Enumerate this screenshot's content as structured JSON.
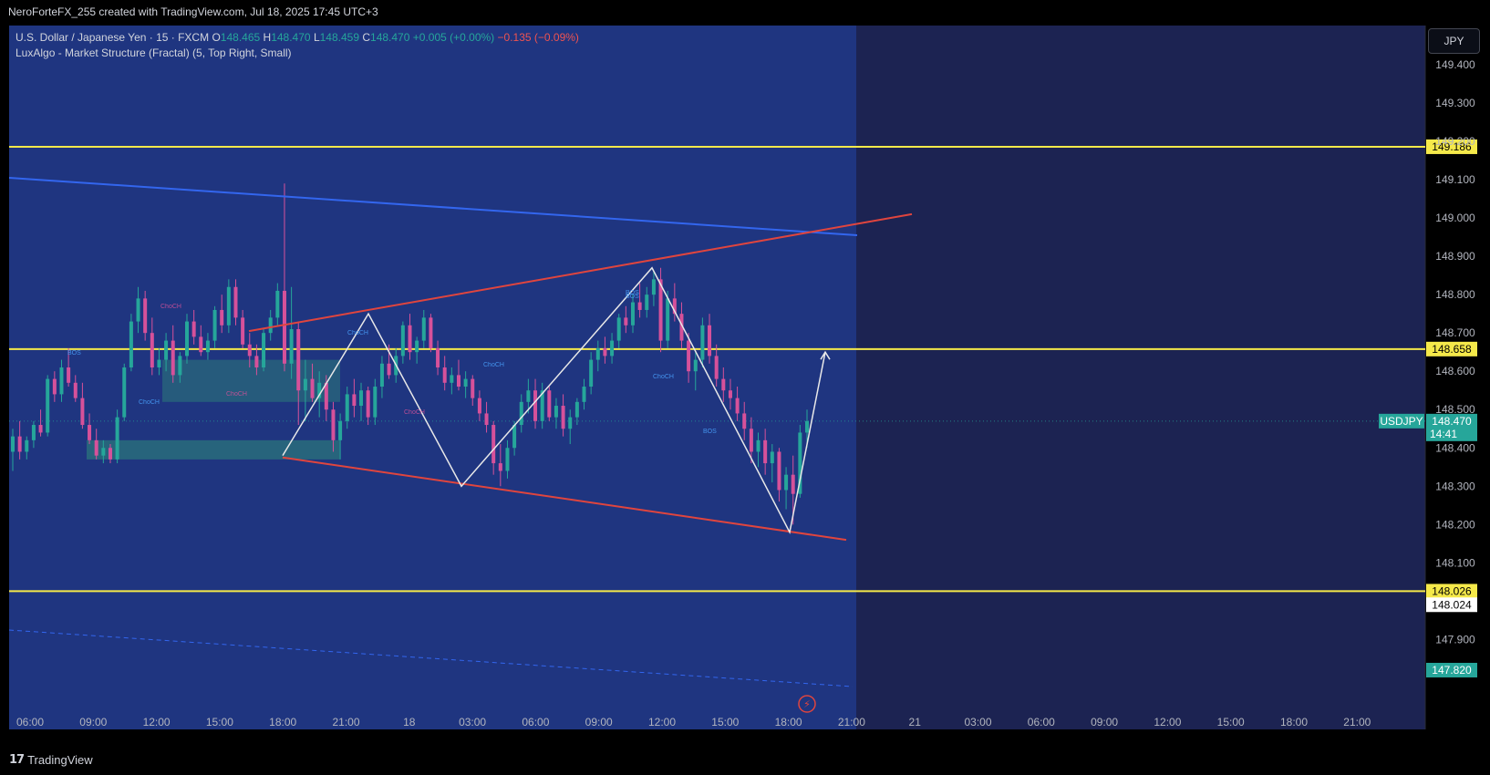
{
  "header": {
    "attribution": "NeroForteFX_255 created with TradingView.com, Jul 18, 2025 17:45 UTC+3"
  },
  "legend": {
    "symbol": "U.S. Dollar / Japanese Yen · 15 · FXCM",
    "open_label": "O",
    "open": "148.465",
    "high_label": "H",
    "high": "148.470",
    "low_label": "L",
    "low": "148.459",
    "close_label": "C",
    "close": "148.470",
    "change": "+0.005 (+0.00%)",
    "day_change": "−0.135 (−0.09%)",
    "indicator": "LuxAlgo - Market Structure (Fractal) (5, Top Right, Small)"
  },
  "currency_button": "JPY",
  "footer": {
    "brand": "TradingView"
  },
  "colors": {
    "background": "#1c2352",
    "shaded_zone": "#1f3580",
    "bull": "#26a69a",
    "bear": "#d6519a",
    "yellow_level": "#f5e94a",
    "blue_line": "#3366ee",
    "red_line": "#e0453e",
    "pattern": "#e8e8e8"
  },
  "chart_data": {
    "type": "candlestick",
    "symbol": "USDJPY",
    "timeframe": "15",
    "ylim": [
      147.77,
      149.5
    ],
    "y_ticks": [
      "149.400",
      "149.300",
      "149.200",
      "149.100",
      "149.000",
      "148.900",
      "148.800",
      "148.700",
      "148.600",
      "148.500",
      "148.400",
      "148.300",
      "148.200",
      "148.100",
      "147.900"
    ],
    "x_ticks": [
      "06:00",
      "09:00",
      "12:00",
      "15:00",
      "18:00",
      "21:00",
      "18",
      "03:00",
      "06:00",
      "09:00",
      "12:00",
      "15:00",
      "18:00",
      "21:00",
      "21",
      "03:00",
      "06:00",
      "09:00",
      "12:00",
      "15:00",
      "18:00",
      "21:00"
    ],
    "price_levels": [
      {
        "value": 149.186,
        "label": "149.186",
        "color": "yellow"
      },
      {
        "value": 148.658,
        "label": "148.658",
        "color": "yellow"
      },
      {
        "value": 148.026,
        "label": "148.026",
        "color": "yellow"
      },
      {
        "value": 148.024,
        "label": "148.024",
        "color": "white"
      }
    ],
    "current_price": {
      "symbol": "USDJPY",
      "value": "148.470",
      "countdown": "14:41"
    },
    "lowest_marker": {
      "value": 147.82,
      "label": "147.820"
    },
    "trendlines": [
      {
        "name": "descending-blue",
        "from": [
          "06:00",
          149.105
        ],
        "to": [
          "20:30",
          148.955
        ]
      },
      {
        "name": "upper-red",
        "from": [
          "18:00",
          148.705
        ],
        "to": [
          "21:30",
          149.01
        ]
      },
      {
        "name": "lower-red",
        "from": [
          "18:00",
          148.375
        ],
        "to": [
          "20:30",
          148.16
        ]
      }
    ],
    "zigzag": [
      [
        "18:00",
        148.38
      ],
      [
        "22:00",
        148.75
      ],
      [
        "02:00",
        148.3
      ],
      [
        "09:30",
        148.87
      ],
      [
        "16:30",
        148.18
      ],
      [
        "17:30",
        148.65
      ]
    ],
    "structure_labels": [
      "BOS",
      "ChoCH",
      "ChoCH",
      "ChoCH",
      "ChoCH",
      "ChoCH",
      "ChoCH",
      "BOS",
      "ChoCH",
      "BOS",
      "BOS"
    ],
    "candles": [
      [
        148.39,
        148.45,
        148.34,
        148.43
      ],
      [
        148.43,
        148.47,
        148.37,
        148.39
      ],
      [
        148.39,
        148.43,
        148.37,
        148.42
      ],
      [
        148.42,
        148.47,
        148.4,
        148.46
      ],
      [
        148.46,
        148.5,
        148.43,
        148.44
      ],
      [
        148.44,
        148.59,
        148.43,
        148.58
      ],
      [
        148.58,
        148.6,
        148.52,
        148.54
      ],
      [
        148.54,
        148.63,
        148.52,
        148.61
      ],
      [
        148.61,
        148.66,
        148.56,
        148.57
      ],
      [
        148.57,
        148.59,
        148.52,
        148.53
      ],
      [
        148.53,
        148.57,
        148.45,
        148.46
      ],
      [
        148.46,
        148.49,
        148.41,
        148.42
      ],
      [
        148.42,
        148.45,
        148.37,
        148.38
      ],
      [
        148.38,
        148.42,
        148.36,
        148.4
      ],
      [
        148.4,
        148.41,
        148.36,
        148.37
      ],
      [
        148.37,
        148.5,
        148.36,
        148.48
      ],
      [
        148.48,
        148.62,
        148.47,
        148.61
      ],
      [
        148.61,
        148.75,
        148.6,
        148.73
      ],
      [
        148.73,
        148.82,
        148.7,
        148.79
      ],
      [
        148.79,
        148.81,
        148.68,
        148.7
      ],
      [
        148.7,
        148.74,
        148.59,
        148.61
      ],
      [
        148.61,
        148.66,
        148.59,
        148.63
      ],
      [
        148.63,
        148.7,
        148.6,
        148.68
      ],
      [
        148.68,
        148.72,
        148.57,
        148.59
      ],
      [
        148.59,
        148.65,
        148.57,
        148.64
      ],
      [
        148.64,
        148.75,
        148.62,
        148.73
      ],
      [
        148.73,
        148.76,
        148.67,
        148.69
      ],
      [
        148.69,
        148.72,
        148.64,
        148.65
      ],
      [
        148.65,
        148.7,
        148.63,
        148.68
      ],
      [
        148.68,
        148.77,
        148.66,
        148.76
      ],
      [
        148.76,
        148.8,
        148.7,
        148.72
      ],
      [
        148.72,
        148.84,
        148.7,
        148.82
      ],
      [
        148.82,
        148.84,
        148.72,
        148.74
      ],
      [
        148.74,
        148.76,
        148.66,
        148.67
      ],
      [
        148.67,
        148.7,
        148.61,
        148.64
      ],
      [
        148.64,
        148.67,
        148.59,
        148.61
      ],
      [
        148.61,
        148.71,
        148.6,
        148.7
      ],
      [
        148.7,
        148.76,
        148.68,
        148.74
      ],
      [
        148.74,
        148.83,
        148.72,
        148.81
      ],
      [
        148.81,
        149.09,
        148.6,
        148.62
      ],
      [
        148.62,
        148.82,
        148.58,
        148.71
      ],
      [
        148.71,
        148.73,
        148.46,
        148.55
      ],
      [
        148.55,
        148.63,
        148.47,
        148.58
      ],
      [
        148.58,
        148.62,
        148.52,
        148.53
      ],
      [
        148.53,
        148.6,
        148.48,
        148.57
      ],
      [
        148.57,
        148.59,
        148.47,
        148.5
      ],
      [
        148.5,
        148.52,
        148.39,
        148.42
      ],
      [
        148.42,
        148.49,
        148.37,
        148.47
      ],
      [
        148.47,
        148.56,
        148.45,
        148.54
      ],
      [
        148.54,
        148.58,
        148.48,
        148.51
      ],
      [
        148.51,
        148.57,
        148.47,
        148.55
      ],
      [
        148.55,
        148.56,
        148.46,
        148.48
      ],
      [
        148.48,
        148.58,
        148.46,
        148.56
      ],
      [
        148.56,
        148.64,
        148.53,
        148.62
      ],
      [
        148.62,
        148.67,
        148.58,
        148.59
      ],
      [
        148.59,
        148.66,
        148.57,
        148.64
      ],
      [
        148.64,
        148.73,
        148.62,
        148.72
      ],
      [
        148.72,
        148.75,
        148.63,
        148.65
      ],
      [
        148.65,
        148.69,
        148.62,
        148.68
      ],
      [
        148.68,
        148.76,
        148.66,
        148.74
      ],
      [
        148.74,
        148.75,
        148.65,
        148.66
      ],
      [
        148.66,
        148.68,
        148.59,
        148.61
      ],
      [
        148.61,
        148.64,
        148.55,
        148.57
      ],
      [
        148.57,
        148.61,
        148.54,
        148.59
      ],
      [
        148.59,
        148.63,
        148.55,
        148.56
      ],
      [
        148.56,
        148.6,
        148.53,
        148.58
      ],
      [
        148.58,
        148.59,
        148.51,
        148.53
      ],
      [
        148.53,
        148.55,
        148.47,
        148.49
      ],
      [
        148.49,
        148.52,
        148.44,
        148.46
      ],
      [
        148.46,
        148.47,
        148.33,
        148.36
      ],
      [
        148.36,
        148.41,
        148.3,
        148.34
      ],
      [
        148.34,
        148.42,
        148.32,
        148.4
      ],
      [
        148.4,
        148.47,
        148.38,
        148.46
      ],
      [
        148.46,
        148.54,
        148.44,
        148.52
      ],
      [
        148.52,
        148.58,
        148.49,
        148.55
      ],
      [
        148.55,
        148.58,
        148.45,
        148.47
      ],
      [
        148.47,
        148.57,
        148.45,
        148.55
      ],
      [
        148.55,
        148.56,
        148.47,
        148.48
      ],
      [
        148.48,
        148.53,
        148.45,
        148.51
      ],
      [
        148.51,
        148.54,
        148.43,
        148.45
      ],
      [
        148.45,
        148.5,
        148.41,
        148.48
      ],
      [
        148.48,
        148.53,
        148.46,
        148.52
      ],
      [
        148.52,
        148.58,
        148.5,
        148.56
      ],
      [
        148.56,
        148.65,
        148.54,
        148.63
      ],
      [
        148.63,
        148.68,
        148.6,
        148.66
      ],
      [
        148.66,
        148.69,
        148.62,
        148.64
      ],
      [
        148.64,
        148.7,
        148.62,
        148.68
      ],
      [
        148.68,
        148.75,
        148.66,
        148.74
      ],
      [
        148.74,
        148.77,
        148.7,
        148.72
      ],
      [
        148.72,
        148.8,
        148.7,
        148.78
      ],
      [
        148.78,
        148.83,
        148.74,
        148.76
      ],
      [
        148.76,
        148.82,
        148.74,
        148.8
      ],
      [
        148.8,
        148.86,
        148.77,
        148.84
      ],
      [
        148.84,
        148.87,
        148.65,
        148.68
      ],
      [
        148.68,
        148.81,
        148.66,
        148.79
      ],
      [
        148.79,
        148.83,
        148.73,
        148.75
      ],
      [
        148.75,
        148.78,
        148.66,
        148.68
      ],
      [
        148.68,
        148.7,
        148.57,
        148.6
      ],
      [
        148.6,
        148.65,
        148.55,
        148.63
      ],
      [
        148.63,
        148.74,
        148.61,
        148.72
      ],
      [
        148.72,
        148.75,
        148.62,
        148.64
      ],
      [
        148.64,
        148.67,
        148.56,
        148.58
      ],
      [
        148.58,
        148.61,
        148.52,
        148.55
      ],
      [
        148.55,
        148.58,
        148.5,
        148.53
      ],
      [
        148.53,
        148.56,
        148.47,
        148.49
      ],
      [
        148.49,
        148.52,
        148.42,
        148.45
      ],
      [
        148.45,
        148.48,
        148.36,
        148.39
      ],
      [
        148.39,
        148.44,
        148.35,
        148.42
      ],
      [
        148.42,
        148.45,
        148.33,
        148.36
      ],
      [
        148.36,
        148.41,
        148.31,
        148.39
      ],
      [
        148.39,
        148.4,
        148.26,
        148.29
      ],
      [
        148.29,
        148.35,
        148.24,
        148.33
      ],
      [
        148.33,
        148.38,
        148.2,
        148.28
      ],
      [
        148.28,
        148.46,
        148.27,
        148.44
      ],
      [
        148.44,
        148.5,
        148.4,
        148.47
      ]
    ]
  }
}
